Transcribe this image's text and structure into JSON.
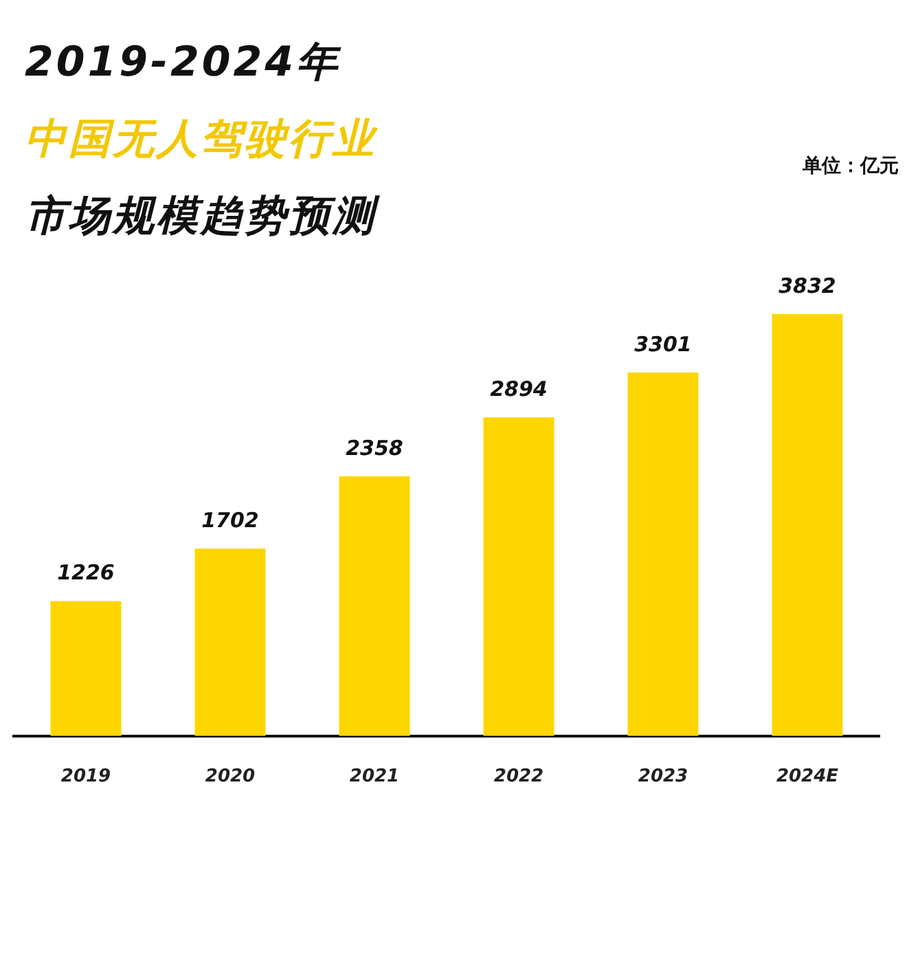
{
  "chart_data": {
    "type": "bar",
    "title": "2019-2024年",
    "subtitle": "中国无人驾驶行业",
    "categories": [
      "2019",
      "2020",
      "2021",
      "2022",
      "2023",
      "2024E"
    ],
    "values": [
      1226,
      1702,
      2358,
      2894,
      3301,
      3832
    ],
    "color": "#fdd600",
    "data_labels": true,
    "grid": false,
    "legend": false,
    "annotations": [
      "市场规模趋势预测",
      "单位：亿元"
    ]
  }
}
